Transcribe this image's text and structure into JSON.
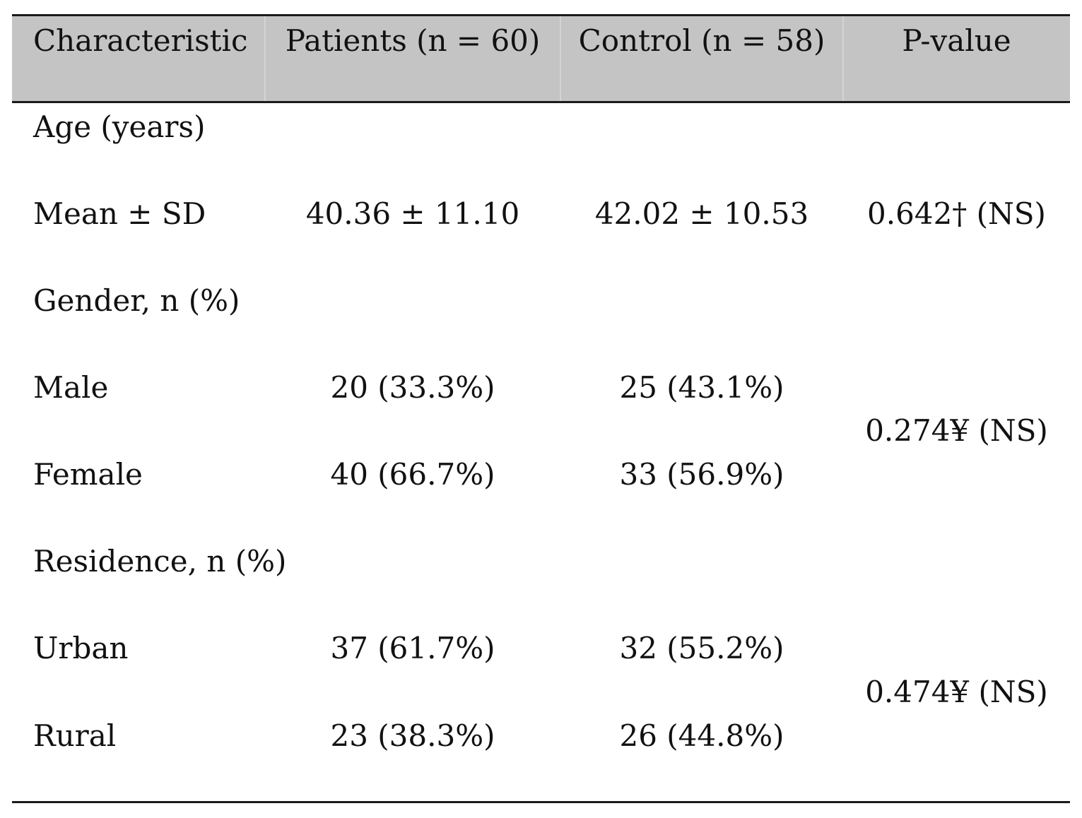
{
  "table": {
    "headers": [
      "Characteristic",
      "Patients (n = 60)",
      "Control (n = 58)",
      "P-value"
    ],
    "sections": [
      {
        "label": "Age (years)",
        "rows": [
          {
            "label": "Mean ± SD",
            "patients": "40.36 ± 11.10",
            "control": "42.02 ± 10.53"
          }
        ],
        "p_value": "0.642† (NS)"
      },
      {
        "label": "Gender, n (%)",
        "rows": [
          {
            "label": "Male",
            "patients": "20 (33.3%)",
            "control": "25 (43.1%)"
          },
          {
            "label": "Female",
            "patients": "40 (66.7%)",
            "control": "33 (56.9%)"
          }
        ],
        "p_value": "0.274¥ (NS)"
      },
      {
        "label": "Residence, n (%)",
        "rows": [
          {
            "label": "Urban",
            "patients": "37 (61.7%)",
            "control": "32 (55.2%)"
          },
          {
            "label": "Rural",
            "patients": "23 (38.3%)",
            "control": "26 (44.8%)"
          }
        ],
        "p_value": "0.474¥ (NS)"
      }
    ]
  }
}
